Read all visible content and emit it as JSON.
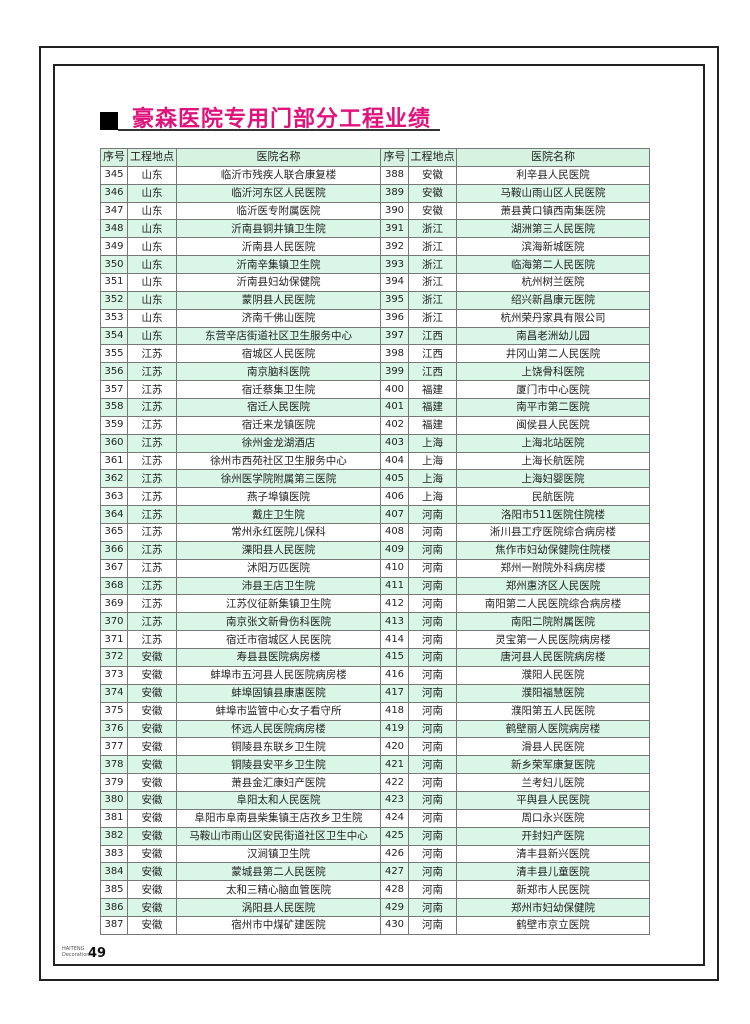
{
  "title": "豪森医院专用门部分工程业绩",
  "columns": [
    "序号",
    "工程地点",
    "医院名称"
  ],
  "left_rows": [
    [
      "345",
      "山东",
      "临沂市残疾人联合康复楼"
    ],
    [
      "346",
      "山东",
      "临沂河东区人民医院"
    ],
    [
      "347",
      "山东",
      "临沂医专附属医院"
    ],
    [
      "348",
      "山东",
      "沂南县铜井镇卫生院"
    ],
    [
      "349",
      "山东",
      "沂南县人民医院"
    ],
    [
      "350",
      "山东",
      "沂南辛集镇卫生院"
    ],
    [
      "351",
      "山东",
      "沂南县妇幼保健院"
    ],
    [
      "352",
      "山东",
      "蒙阴县人民医院"
    ],
    [
      "353",
      "山东",
      "济南千佛山医院"
    ],
    [
      "354",
      "山东",
      "东营辛店街道社区卫生服务中心"
    ],
    [
      "355",
      "江苏",
      "宿城区人民医院"
    ],
    [
      "356",
      "江苏",
      "南京脑科医院"
    ],
    [
      "357",
      "江苏",
      "宿迁蔡集卫生院"
    ],
    [
      "358",
      "江苏",
      "宿迁人民医院"
    ],
    [
      "359",
      "江苏",
      "宿迁来龙镇医院"
    ],
    [
      "360",
      "江苏",
      "徐州金龙湖酒店"
    ],
    [
      "361",
      "江苏",
      "徐州市西苑社区卫生服务中心"
    ],
    [
      "362",
      "江苏",
      "徐州医学院附属第三医院"
    ],
    [
      "363",
      "江苏",
      "燕子埠镇医院"
    ],
    [
      "364",
      "江苏",
      "戴庄卫生院"
    ],
    [
      "365",
      "江苏",
      "常州永红医院儿保科"
    ],
    [
      "366",
      "江苏",
      "溧阳县人民医院"
    ],
    [
      "367",
      "江苏",
      "沭阳万匹医院"
    ],
    [
      "368",
      "江苏",
      "沛县王店卫生院"
    ],
    [
      "369",
      "江苏",
      "江苏仪征新集镇卫生院"
    ],
    [
      "370",
      "江苏",
      "南京张文新骨伤科医院"
    ],
    [
      "371",
      "江苏",
      "宿迁市宿城区人民医院"
    ],
    [
      "372",
      "安徽",
      "寿县县医院病房楼"
    ],
    [
      "373",
      "安徽",
      "蚌埠市五河县人民医院病房楼"
    ],
    [
      "374",
      "安徽",
      "蚌埠固镇县康惠医院"
    ],
    [
      "375",
      "安徽",
      "蚌埠市监管中心女子看守所"
    ],
    [
      "376",
      "安徽",
      "怀远人民医院病房楼"
    ],
    [
      "377",
      "安徽",
      "铜陵县东联乡卫生院"
    ],
    [
      "378",
      "安徽",
      "铜陵县安平乡卫生院"
    ],
    [
      "379",
      "安徽",
      "萧县金汇康妇产医院"
    ],
    [
      "380",
      "安徽",
      "阜阳太和人民医院"
    ],
    [
      "381",
      "安徽",
      "阜阳市阜南县柴集镇王店孜乡卫生院"
    ],
    [
      "382",
      "安徽",
      "马鞍山市雨山区安民街道社区卫生中心"
    ],
    [
      "383",
      "安徽",
      "汉涧镇卫生院"
    ],
    [
      "384",
      "安徽",
      "蒙城县第二人民医院"
    ],
    [
      "385",
      "安徽",
      "太和三精心脑血管医院"
    ],
    [
      "386",
      "安徽",
      "涡阳县人民医院"
    ],
    [
      "387",
      "安徽",
      "宿州市中煤矿建医院"
    ]
  ],
  "right_rows": [
    [
      "388",
      "安徽",
      "利辛县人民医院"
    ],
    [
      "389",
      "安徽",
      "马鞍山雨山区人民医院"
    ],
    [
      "390",
      "安徽",
      "萧县黄口镇西南集医院"
    ],
    [
      "391",
      "浙江",
      "湖洲第三人民医院"
    ],
    [
      "392",
      "浙江",
      "滨海新城医院"
    ],
    [
      "393",
      "浙江",
      "临海第二人民医院"
    ],
    [
      "394",
      "浙江",
      "杭州树兰医院"
    ],
    [
      "395",
      "浙江",
      "绍兴新昌康元医院"
    ],
    [
      "396",
      "浙江",
      "杭州荣丹家具有限公司"
    ],
    [
      "397",
      "江西",
      "南昌老洲幼儿园"
    ],
    [
      "398",
      "江西",
      "井冈山第二人民医院"
    ],
    [
      "399",
      "江西",
      "上饶骨科医院"
    ],
    [
      "400",
      "福建",
      "厦门市中心医院"
    ],
    [
      "401",
      "福建",
      "南平市第二医院"
    ],
    [
      "402",
      "福建",
      "闽侯县人民医院"
    ],
    [
      "403",
      "上海",
      "上海北站医院"
    ],
    [
      "404",
      "上海",
      "上海长航医院"
    ],
    [
      "405",
      "上海",
      "上海妇婴医院"
    ],
    [
      "406",
      "上海",
      "民航医院"
    ],
    [
      "407",
      "河南",
      "洛阳市511医院住院楼"
    ],
    [
      "408",
      "河南",
      "淅川县工疗医院综合病房楼"
    ],
    [
      "409",
      "河南",
      "焦作市妇幼保健院住院楼"
    ],
    [
      "410",
      "河南",
      "郑州一附院外科病房楼"
    ],
    [
      "411",
      "河南",
      "郑州惠济区人民医院"
    ],
    [
      "412",
      "河南",
      "南阳第二人民医院综合病房楼"
    ],
    [
      "413",
      "河南",
      "南阳二院附属医院"
    ],
    [
      "414",
      "河南",
      "灵宝第一人民医院病房楼"
    ],
    [
      "415",
      "河南",
      "唐河县人民医院病房楼"
    ],
    [
      "416",
      "河南",
      "濮阳人民医院"
    ],
    [
      "417",
      "河南",
      "濮阳福慧医院"
    ],
    [
      "418",
      "河南",
      "濮阳第五人民医院"
    ],
    [
      "419",
      "河南",
      "鹤壁丽人医院病房楼"
    ],
    [
      "420",
      "河南",
      "滑县人民医院"
    ],
    [
      "421",
      "河南",
      "新乡荣军康复医院"
    ],
    [
      "422",
      "河南",
      "兰考妇儿医院"
    ],
    [
      "423",
      "河南",
      "平舆县人民医院"
    ],
    [
      "424",
      "河南",
      "周口永兴医院"
    ],
    [
      "425",
      "河南",
      "开封妇产医院"
    ],
    [
      "426",
      "河南",
      "清丰县新兴医院"
    ],
    [
      "427",
      "河南",
      "清丰县儿童医院"
    ],
    [
      "428",
      "河南",
      "新郑市人民医院"
    ],
    [
      "429",
      "河南",
      "郑州市妇幼保健院"
    ],
    [
      "430",
      "河南",
      "鹤壁市京立医院"
    ]
  ],
  "footer": {
    "brand_line1": "HAITENG",
    "brand_line2": "Decoration",
    "page_number": "49"
  },
  "colors": {
    "title": "#e0137d",
    "row_highlight": "#d9f6e6"
  }
}
